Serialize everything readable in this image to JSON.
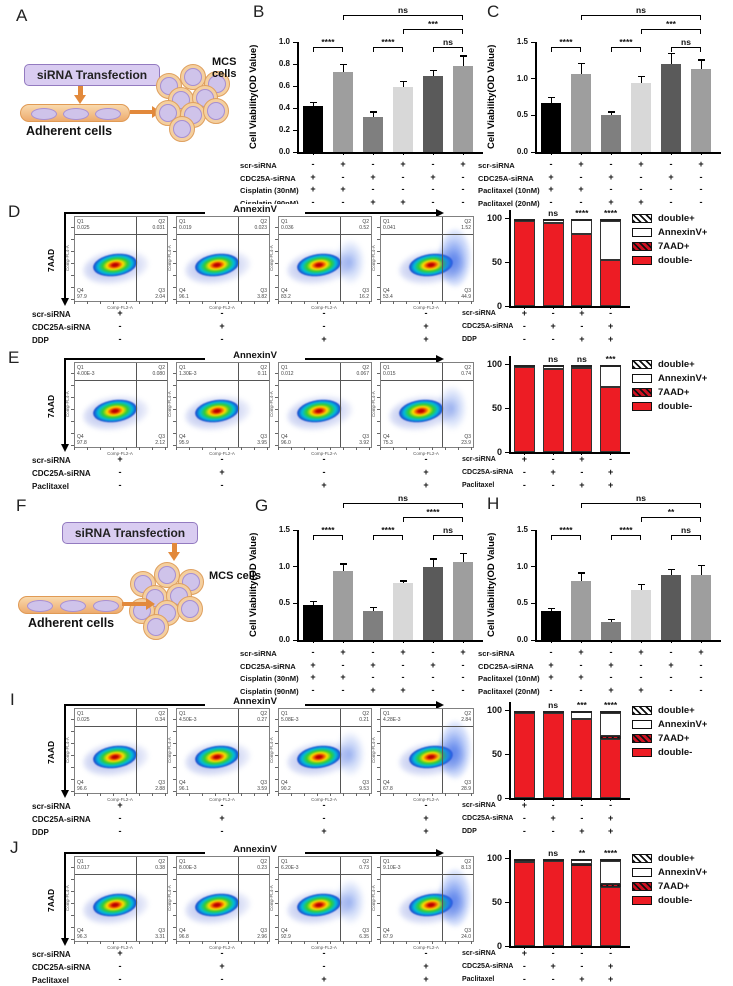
{
  "panel_letters": {
    "A": "A",
    "B": "B",
    "C": "C",
    "D": "D",
    "E": "E",
    "F": "F",
    "G": "G",
    "H": "H",
    "I": "I",
    "J": "J"
  },
  "diagram": {
    "transfection_label": "siRNA Transfection",
    "adherent_label": "Adherent cells",
    "mcs_label": "MCS cells"
  },
  "flow_common": {
    "x_arrow": "AnnexinV",
    "y_arrow": "7AAD",
    "plot_x": "Comp-FL2-A",
    "plot_y": "Comp-FL4-A"
  },
  "colors": {
    "red": "#ed1c24",
    "bars": [
      "#000000",
      "#9e9e9e",
      "#7f7f7f",
      "#d8d8d8",
      "#5a5a5a",
      "#9e9e9e"
    ],
    "orange": "#e2893b",
    "purple": "#d9ccf1"
  },
  "chart_data": [
    {
      "id": "B",
      "type": "bar",
      "ylabel": "Cell Viability(OD Value)",
      "ylim": [
        0,
        1.0
      ],
      "yticks": [
        0,
        0.2,
        0.4,
        0.6,
        0.8,
        1.0
      ],
      "decimals": 1,
      "values": [
        0.42,
        0.73,
        0.32,
        0.59,
        0.69,
        0.78
      ],
      "errors": [
        0.03,
        0.06,
        0.04,
        0.05,
        0.05,
        0.09
      ],
      "sig": [
        [
          0,
          1,
          "****",
          0
        ],
        [
          2,
          3,
          "****",
          0
        ],
        [
          4,
          5,
          "ns",
          0
        ],
        [
          3,
          5,
          "***",
          1
        ],
        [
          1,
          5,
          "ns",
          2
        ]
      ],
      "conditions": {
        "labels": [
          "scr-siRNA",
          "CDC25A-siRNA",
          "Cisplatin (30nM)",
          "Cisplatin (90nM)"
        ],
        "marks": [
          [
            "-",
            "+",
            "-",
            "+",
            "-",
            "+"
          ],
          [
            "+",
            "-",
            "+",
            "-",
            "+",
            "-"
          ],
          [
            "+",
            "+",
            "-",
            "-",
            "-",
            "-"
          ],
          [
            "-",
            "-",
            "+",
            "+",
            "-",
            "-"
          ]
        ]
      }
    },
    {
      "id": "C",
      "type": "bar",
      "ylabel": "Cell Viability(OD Value)",
      "ylim": [
        0,
        1.5
      ],
      "yticks": [
        0,
        0.5,
        1.0,
        1.5
      ],
      "decimals": 1,
      "values": [
        0.67,
        1.07,
        0.5,
        0.94,
        1.2,
        1.13
      ],
      "errors": [
        0.07,
        0.13,
        0.04,
        0.08,
        0.14,
        0.12
      ],
      "sig": [
        [
          0,
          1,
          "****",
          0
        ],
        [
          2,
          3,
          "****",
          0
        ],
        [
          4,
          5,
          "ns",
          0
        ],
        [
          3,
          5,
          "***",
          1
        ],
        [
          1,
          5,
          "ns",
          2
        ]
      ],
      "conditions": {
        "labels": [
          "scr-siRNA",
          "CDC25A-siRNA",
          "Paclitaxel (10nM)",
          "Paclitaxel (20nM)"
        ],
        "marks": [
          [
            "-",
            "+",
            "-",
            "+",
            "-",
            "+"
          ],
          [
            "+",
            "-",
            "+",
            "-",
            "+",
            "-"
          ],
          [
            "+",
            "+",
            "-",
            "-",
            "-",
            "-"
          ],
          [
            "-",
            "-",
            "+",
            "+",
            "-",
            "-"
          ]
        ]
      }
    },
    {
      "id": "G",
      "type": "bar",
      "ylabel": "Cell Viability(OD Value)",
      "ylim": [
        0,
        1.5
      ],
      "yticks": [
        0,
        0.5,
        1.0,
        1.5
      ],
      "decimals": 1,
      "values": [
        0.48,
        0.94,
        0.39,
        0.78,
        1.0,
        1.06
      ],
      "errors": [
        0.04,
        0.09,
        0.05,
        0.02,
        0.1,
        0.11
      ],
      "sig": [
        [
          0,
          1,
          "****",
          0
        ],
        [
          2,
          3,
          "****",
          0
        ],
        [
          4,
          5,
          "ns",
          0
        ],
        [
          3,
          5,
          "****",
          1
        ],
        [
          1,
          5,
          "ns",
          2
        ]
      ],
      "conditions": {
        "labels": [
          "scr-siRNA",
          "CDC25A-siRNA",
          "Cisplatin (30nM)",
          "Cisplatin (90nM)"
        ],
        "marks": [
          [
            "-",
            "+",
            "-",
            "+",
            "-",
            "+"
          ],
          [
            "+",
            "-",
            "+",
            "-",
            "+",
            "-"
          ],
          [
            "+",
            "+",
            "-",
            "-",
            "-",
            "-"
          ],
          [
            "-",
            "-",
            "+",
            "+",
            "-",
            "-"
          ]
        ]
      }
    },
    {
      "id": "H",
      "type": "bar",
      "ylabel": "Cell Viability(OD Value)",
      "ylim": [
        0,
        1.5
      ],
      "yticks": [
        0,
        0.5,
        1.0,
        1.5
      ],
      "decimals": 1,
      "values": [
        0.39,
        0.81,
        0.24,
        0.68,
        0.89,
        0.89
      ],
      "errors": [
        0.03,
        0.1,
        0.03,
        0.07,
        0.07,
        0.12
      ],
      "sig": [
        [
          0,
          1,
          "****",
          0
        ],
        [
          2,
          3,
          "****",
          0
        ],
        [
          4,
          5,
          "ns",
          0
        ],
        [
          3,
          5,
          "**",
          1
        ],
        [
          1,
          5,
          "ns",
          2
        ]
      ],
      "conditions": {
        "labels": [
          "scr-siRNA",
          "CDC25A-siRNA",
          "Paclitaxel (10nM)",
          "Paclitaxel (20nM)"
        ],
        "marks": [
          [
            "-",
            "+",
            "-",
            "+",
            "-",
            "+"
          ],
          [
            "+",
            "-",
            "+",
            "-",
            "+",
            "-"
          ],
          [
            "+",
            "+",
            "-",
            "-",
            "-",
            "-"
          ],
          [
            "-",
            "-",
            "+",
            "+",
            "-",
            "-"
          ]
        ]
      }
    },
    {
      "id": "D",
      "type": "stacked",
      "yticks": [
        0,
        50,
        100
      ],
      "ylim": [
        0,
        110
      ],
      "sig": [
        "",
        "ns",
        "****",
        "****"
      ],
      "series": [
        {
          "name": "double-",
          "values": [
            97,
            95,
            83,
            53
          ]
        },
        {
          "name": "7AAD+",
          "values": [
            0,
            0,
            0,
            0
          ]
        },
        {
          "name": "AnnexinV+",
          "values": [
            2,
            4,
            15,
            44
          ]
        },
        {
          "name": "double+",
          "values": [
            1,
            1,
            2,
            3
          ]
        }
      ],
      "legend": [
        {
          "label": "double+",
          "swatch": "hatch-bw"
        },
        {
          "label": "AnnexinV+",
          "swatch": "white"
        },
        {
          "label": "7AAD+",
          "swatch": "hatch-red"
        },
        {
          "label": "double-",
          "swatch": "red"
        }
      ],
      "conditions": {
        "labels": [
          "scr-siRNA",
          "CDC25A-siRNA",
          "DDP"
        ],
        "marks": [
          [
            "+",
            "-",
            "+",
            "-"
          ],
          [
            "-",
            "+",
            "-",
            "+"
          ],
          [
            "-",
            "-",
            "+",
            "+"
          ]
        ]
      }
    },
    {
      "id": "E",
      "type": "stacked",
      "yticks": [
        0,
        50,
        100
      ],
      "ylim": [
        0,
        110
      ],
      "sig": [
        "",
        "ns",
        "ns",
        "***"
      ],
      "series": [
        {
          "name": "double-",
          "values": [
            97,
            95,
            96,
            75
          ]
        },
        {
          "name": "7AAD+",
          "values": [
            0,
            0,
            0,
            0
          ]
        },
        {
          "name": "AnnexinV+",
          "values": [
            2,
            4,
            3,
            24
          ]
        },
        {
          "name": "double+",
          "values": [
            1,
            1,
            1,
            1
          ]
        }
      ],
      "legend": [
        {
          "label": "double+",
          "swatch": "hatch-bw"
        },
        {
          "label": "AnnexinV+",
          "swatch": "white"
        },
        {
          "label": "7AAD+",
          "swatch": "hatch-red"
        },
        {
          "label": "double-",
          "swatch": "red"
        }
      ],
      "conditions": {
        "labels": [
          "scr-siRNA",
          "CDC25A-siRNA",
          "Paclitaxel"
        ],
        "marks": [
          [
            "+",
            "-",
            "+",
            "-"
          ],
          [
            "-",
            "+",
            "-",
            "+"
          ],
          [
            "-",
            "-",
            "+",
            "+"
          ]
        ]
      }
    },
    {
      "id": "I",
      "type": "stacked",
      "yticks": [
        0,
        50,
        100
      ],
      "ylim": [
        0,
        110
      ],
      "sig": [
        "",
        "ns",
        "***",
        "****"
      ],
      "series": [
        {
          "name": "double-",
          "values": [
            97,
            97,
            91,
            68
          ]
        },
        {
          "name": "7AAD+",
          "values": [
            0,
            0,
            0,
            3
          ]
        },
        {
          "name": "AnnexinV+",
          "values": [
            2,
            2,
            8,
            26
          ]
        },
        {
          "name": "double+",
          "values": [
            1,
            1,
            1,
            3
          ]
        }
      ],
      "legend": [
        {
          "label": "double+",
          "swatch": "hatch-bw"
        },
        {
          "label": "AnnexinV+",
          "swatch": "white"
        },
        {
          "label": "7AAD+",
          "swatch": "hatch-red"
        },
        {
          "label": "double-",
          "swatch": "red"
        }
      ],
      "conditions": {
        "labels": [
          "scr-siRNA",
          "CDC25A-siRNA",
          "DDP"
        ],
        "marks": [
          [
            "+",
            "-",
            "-",
            "-"
          ],
          [
            "-",
            "+",
            "-",
            "+"
          ],
          [
            "-",
            "-",
            "+",
            "+"
          ]
        ]
      }
    },
    {
      "id": "J",
      "type": "stacked",
      "yticks": [
        0,
        50,
        100
      ],
      "ylim": [
        0,
        110
      ],
      "sig": [
        "",
        "ns",
        "**",
        "****"
      ],
      "series": [
        {
          "name": "double-",
          "values": [
            96,
            97,
            93,
            68
          ]
        },
        {
          "name": "7AAD+",
          "values": [
            0,
            0,
            1,
            3
          ]
        },
        {
          "name": "AnnexinV+",
          "values": [
            3,
            2,
            5,
            26
          ]
        },
        {
          "name": "double+",
          "values": [
            1,
            1,
            1,
            3
          ]
        }
      ],
      "legend": [
        {
          "label": "double+",
          "swatch": "hatch-bw"
        },
        {
          "label": "AnnexinV+",
          "swatch": "white"
        },
        {
          "label": "7AAD+",
          "swatch": "hatch-red"
        },
        {
          "label": "double-",
          "swatch": "red"
        }
      ],
      "conditions": {
        "labels": [
          "scr-siRNA",
          "CDC25A-siRNA",
          "Paclitaxel"
        ],
        "marks": [
          [
            "+",
            "-",
            "-",
            "-"
          ],
          [
            "-",
            "+",
            "-",
            "+"
          ],
          [
            "-",
            "-",
            "+",
            "+"
          ]
        ]
      }
    }
  ],
  "flow_panels": {
    "D": {
      "plots": [
        {
          "q1": "0.025",
          "q2": "0.031",
          "q3": "2.04",
          "q4": "97.9",
          "shift": 0
        },
        {
          "q1": "0.019",
          "q2": "0.023",
          "q3": "3.82",
          "q4": "96.1",
          "shift": 0
        },
        {
          "q1": "0.036",
          "q2": "0.52",
          "q3": "16.2",
          "q4": "83.2",
          "shift": 1
        },
        {
          "q1": "0.041",
          "q2": "1.52",
          "q3": "44.9",
          "q4": "53.4",
          "shift": 2
        }
      ],
      "conditions": {
        "labels": [
          "scr-siRNA",
          "CDC25A-siRNA",
          "DDP"
        ],
        "marks": [
          [
            "+",
            "-",
            "-",
            "-"
          ],
          [
            "-",
            "+",
            "-",
            "+"
          ],
          [
            "-",
            "-",
            "+",
            "+"
          ]
        ]
      }
    },
    "E": {
      "plots": [
        {
          "q1": "4.00E-3",
          "q2": "0.080",
          "q3": "2.12",
          "q4": "97.8",
          "shift": 0
        },
        {
          "q1": "1.30E-3",
          "q2": "0.11",
          "q3": "3.95",
          "q4": "95.9",
          "shift": 0
        },
        {
          "q1": "0.012",
          "q2": "0.067",
          "q3": "3.92",
          "q4": "96.0",
          "shift": 0
        },
        {
          "q1": "0.015",
          "q2": "0.74",
          "q3": "23.9",
          "q4": "75.3",
          "shift": 1
        }
      ],
      "conditions": {
        "labels": [
          "scr-siRNA",
          "CDC25A-siRNA",
          "Paclitaxel"
        ],
        "marks": [
          [
            "+",
            "-",
            "-",
            "-"
          ],
          [
            "-",
            "+",
            "-",
            "+"
          ],
          [
            "-",
            "-",
            "+",
            "+"
          ]
        ]
      }
    },
    "I": {
      "plots": [
        {
          "q1": "0.025",
          "q2": "0.34",
          "q3": "2.88",
          "q4": "96.6",
          "shift": 0
        },
        {
          "q1": "4.50E-3",
          "q2": "0.27",
          "q3": "3.59",
          "q4": "96.1",
          "shift": 0
        },
        {
          "q1": "5.08E-3",
          "q2": "0.21",
          "q3": "9.53",
          "q4": "90.2",
          "shift": 1
        },
        {
          "q1": "4.28E-3",
          "q2": "2.84",
          "q3": "28.9",
          "q4": "67.8",
          "shift": 2
        }
      ],
      "conditions": {
        "labels": [
          "scr-siRNA",
          "CDC25A-siRNA",
          "DDP"
        ],
        "marks": [
          [
            "+",
            "-",
            "-",
            "-"
          ],
          [
            "-",
            "+",
            "-",
            "+"
          ],
          [
            "-",
            "-",
            "+",
            "+"
          ]
        ]
      }
    },
    "J": {
      "plots": [
        {
          "q1": "0.017",
          "q2": "0.38",
          "q3": "3.31",
          "q4": "96.3",
          "shift": 0
        },
        {
          "q1": "8.00E-3",
          "q2": "0.23",
          "q3": "2.96",
          "q4": "96.8",
          "shift": 0
        },
        {
          "q1": "6.20E-3",
          "q2": "0.73",
          "q3": "6.35",
          "q4": "92.9",
          "shift": 1
        },
        {
          "q1": "9.10E-3",
          "q2": "8.13",
          "q3": "24.0",
          "q4": "67.9",
          "shift": 2
        }
      ],
      "conditions": {
        "labels": [
          "scr-siRNA",
          "CDC25A-siRNA",
          "Paclitaxel"
        ],
        "marks": [
          [
            "+",
            "-",
            "-",
            "-"
          ],
          [
            "-",
            "+",
            "-",
            "+"
          ],
          [
            "-",
            "-",
            "+",
            "+"
          ]
        ]
      }
    }
  }
}
